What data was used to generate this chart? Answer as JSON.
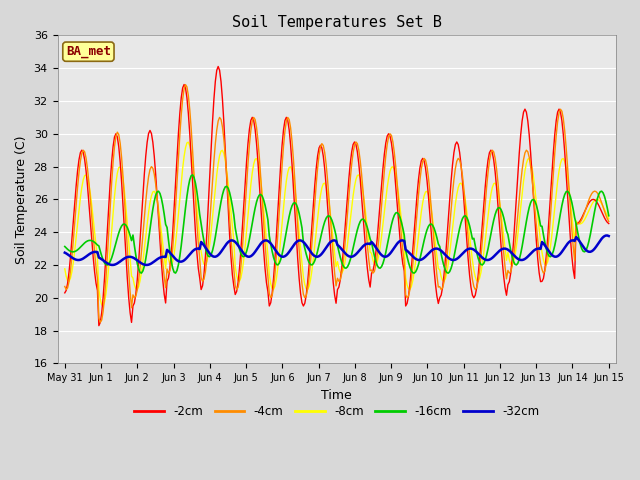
{
  "title": "Soil Temperatures Set B",
  "xlabel": "Time",
  "ylabel": "Soil Temperature (C)",
  "annotation": "BA_met",
  "annotation_color": "#8B0000",
  "annotation_bg": "#FFFF99",
  "background_color": "#D8D8D8",
  "plot_bg": "#E8E8E8",
  "ylim": [
    16,
    36
  ],
  "yticks": [
    16,
    18,
    20,
    22,
    24,
    26,
    28,
    30,
    32,
    34,
    36
  ],
  "legend_entries": [
    "-2cm",
    "-4cm",
    "-8cm",
    "-16cm",
    "-32cm"
  ],
  "line_colors": [
    "#FF0000",
    "#FF8C00",
    "#FFFF00",
    "#00CC00",
    "#0000CC"
  ],
  "line_widths": [
    1.0,
    1.0,
    1.0,
    1.2,
    1.8
  ],
  "x_tick_labels": [
    "May 31",
    "Jun 1",
    "Jun 2",
    "Jun 3",
    "Jun 4",
    "Jun 5",
    "Jun 6",
    "Jun 7",
    "Jun 8",
    "Jun 9",
    "Jun 10",
    "Jun 11",
    "Jun 12",
    "Jun 13",
    "Jun 14",
    "Jun 15"
  ],
  "n_days": 16,
  "pts_per_day": 24
}
